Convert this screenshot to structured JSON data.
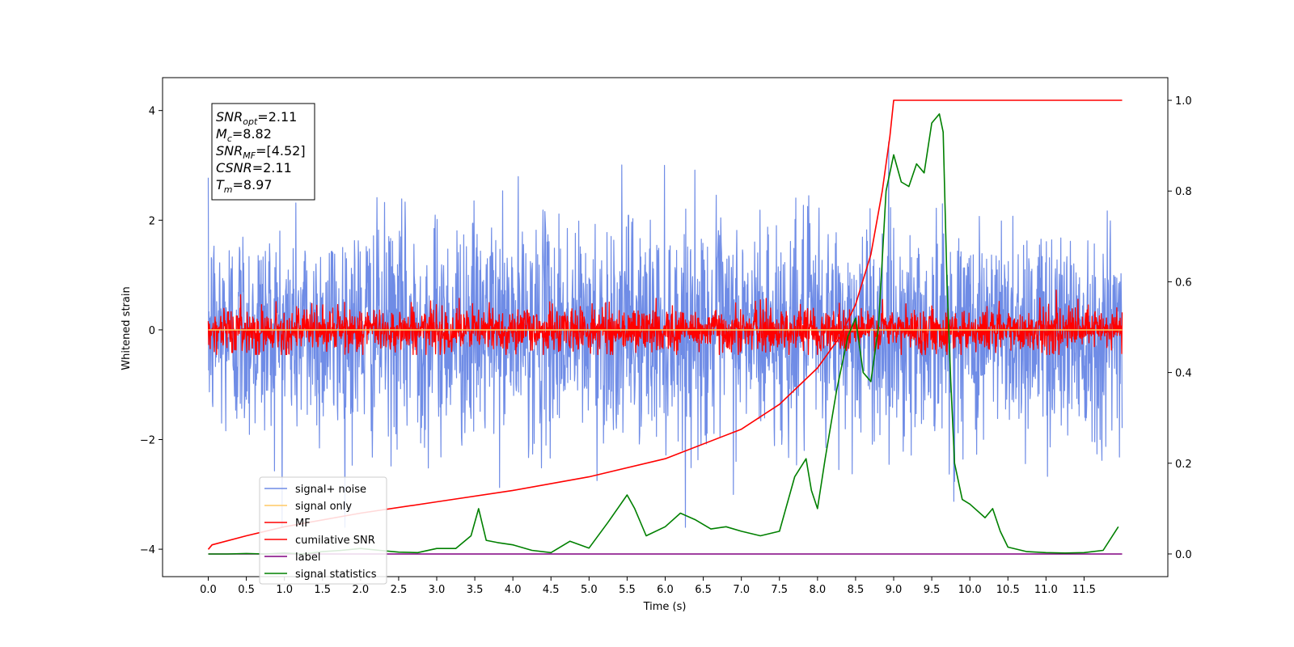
{
  "chart_data": {
    "type": "line",
    "xlabel": "Time (s)",
    "ylabel": "Whitened strain",
    "xlim": [
      -0.6,
      12.6
    ],
    "ylim": [
      -4.5,
      4.6
    ],
    "y2lim": [
      -0.05,
      1.05
    ],
    "x_ticks": [
      "0.0",
      "0.5",
      "1.0",
      "1.5",
      "2.0",
      "2.5",
      "3.0",
      "3.5",
      "4.0",
      "4.5",
      "5.0",
      "5.5",
      "6.0",
      "6.5",
      "7.0",
      "7.5",
      "8.0",
      "8.5",
      "9.0",
      "9.5",
      "10.0",
      "10.5",
      "11.0",
      "11.5"
    ],
    "y_ticks": [
      "−4",
      "−2",
      "0",
      "2",
      "4"
    ],
    "y2_ticks": [
      "0.0",
      "0.2",
      "0.4",
      "0.6",
      "0.8",
      "1.0"
    ],
    "grid": false,
    "legend_position": "lower-left",
    "annotation": [
      {
        "main": "SNR",
        "sub": "opt",
        "value": "=2.11"
      },
      {
        "main": "M",
        "sub": "c",
        "value": "=8.82"
      },
      {
        "main": "SNR",
        "sub": "MF",
        "value": "=[4.52]"
      },
      {
        "main": "CSNR",
        "sub": "",
        "value": "=2.11"
      },
      {
        "main": "T",
        "sub": "m",
        "value": "=8.97"
      }
    ],
    "series": [
      {
        "name": "signal+ noise",
        "color": "#6f8ce6",
        "axis": "left",
        "kind": "noise",
        "x_range": [
          0,
          12
        ],
        "std": 1.0,
        "clip": [
          -3.6,
          4.2
        ]
      },
      {
        "name": "signal only",
        "color": "#ffc864",
        "axis": "left",
        "kind": "flat",
        "x": [
          0,
          12
        ],
        "y": [
          0,
          0
        ]
      },
      {
        "name": "MF",
        "color": "#ff0000",
        "axis": "left",
        "kind": "noise",
        "x_range": [
          0,
          12
        ],
        "std": 0.2,
        "clip": [
          -0.45,
          1.05
        ]
      },
      {
        "name": "cumilative SNR",
        "color": "#ff0000",
        "axis": "right",
        "kind": "curve",
        "x": [
          0.0,
          0.05,
          0.5,
          1.0,
          2.0,
          3.0,
          4.0,
          5.0,
          6.0,
          7.0,
          7.5,
          8.0,
          8.3,
          8.5,
          8.7,
          8.85,
          8.95,
          9.0,
          12.0
        ],
        "y": [
          0.01,
          0.02,
          0.04,
          0.06,
          0.09,
          0.115,
          0.14,
          0.17,
          0.21,
          0.275,
          0.33,
          0.41,
          0.48,
          0.55,
          0.66,
          0.8,
          0.92,
          1.0,
          1.0
        ]
      },
      {
        "name": "label",
        "color": "#800080",
        "axis": "right",
        "kind": "flat",
        "x": [
          0,
          12
        ],
        "y": [
          0,
          0
        ]
      },
      {
        "name": "signal statistics",
        "color": "#008000",
        "axis": "right",
        "kind": "curve",
        "x": [
          0.0,
          0.25,
          0.5,
          0.75,
          1.0,
          1.25,
          1.5,
          1.75,
          2.0,
          2.25,
          2.5,
          2.75,
          3.0,
          3.25,
          3.45,
          3.55,
          3.65,
          3.8,
          4.0,
          4.25,
          4.5,
          4.75,
          5.0,
          5.25,
          5.5,
          5.6,
          5.75,
          6.0,
          6.2,
          6.4,
          6.6,
          6.8,
          7.0,
          7.25,
          7.5,
          7.7,
          7.85,
          7.92,
          8.0,
          8.1,
          8.25,
          8.4,
          8.5,
          8.6,
          8.7,
          8.8,
          8.9,
          9.0,
          9.1,
          9.2,
          9.3,
          9.4,
          9.5,
          9.55,
          9.6,
          9.65,
          9.7,
          9.75,
          9.8,
          9.9,
          10.0,
          10.2,
          10.3,
          10.4,
          10.5,
          10.75,
          11.0,
          11.25,
          11.5,
          11.75,
          11.95
        ],
        "y": [
          0.0,
          0.0,
          0.001,
          0.0,
          0.002,
          0.0,
          0.005,
          0.008,
          0.012,
          0.008,
          0.004,
          0.003,
          0.012,
          0.012,
          0.04,
          0.1,
          0.03,
          0.025,
          0.02,
          0.008,
          0.003,
          0.028,
          0.013,
          0.07,
          0.13,
          0.1,
          0.04,
          0.06,
          0.09,
          0.075,
          0.055,
          0.06,
          0.05,
          0.04,
          0.05,
          0.17,
          0.21,
          0.14,
          0.1,
          0.21,
          0.36,
          0.48,
          0.52,
          0.4,
          0.38,
          0.5,
          0.8,
          0.88,
          0.82,
          0.81,
          0.86,
          0.84,
          0.95,
          0.96,
          0.97,
          0.93,
          0.6,
          0.38,
          0.2,
          0.12,
          0.11,
          0.08,
          0.1,
          0.05,
          0.015,
          0.005,
          0.003,
          0.002,
          0.003,
          0.008,
          0.06
        ]
      }
    ]
  }
}
